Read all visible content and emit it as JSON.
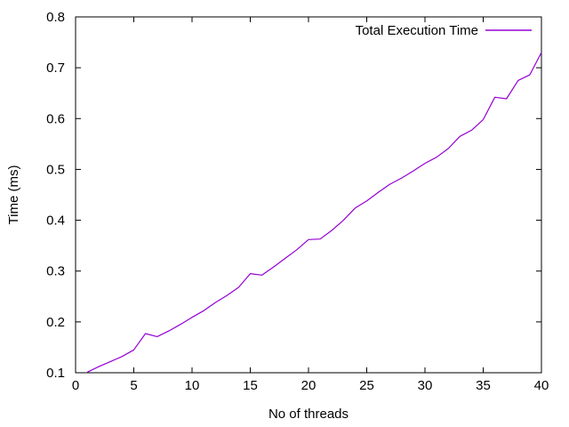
{
  "page": {
    "background": "#ffffff",
    "text_color": "#000000",
    "border_color": "#000000"
  },
  "chart_data": {
    "type": "line",
    "title": "",
    "xlabel": "No of threads",
    "ylabel": "Time (ms)",
    "xlim": [
      0,
      40
    ],
    "ylim": [
      0.1,
      0.8
    ],
    "grid": false,
    "legend_position": "top-right-inside",
    "ticks_style": "inward-mirrored",
    "xticks": {
      "values": [
        0,
        5,
        10,
        15,
        20,
        25,
        30,
        35,
        40
      ],
      "labels": [
        "0",
        "5",
        "10",
        "15",
        "20",
        "25",
        "30",
        "35",
        "40"
      ]
    },
    "yticks": {
      "values": [
        0.1,
        0.2,
        0.3,
        0.4,
        0.5,
        0.6,
        0.7,
        0.8
      ],
      "labels": [
        "0.1",
        "0.2",
        "0.3",
        "0.4",
        "0.5",
        "0.6",
        "0.7",
        "0.8"
      ]
    },
    "series": [
      {
        "name": "Total Execution Time",
        "color": "#9400d3",
        "x": [
          1,
          2,
          3,
          4,
          5,
          6,
          7,
          8,
          9,
          10,
          11,
          12,
          13,
          14,
          15,
          16,
          17,
          18,
          19,
          20,
          21,
          22,
          23,
          24,
          25,
          26,
          27,
          28,
          29,
          30,
          31,
          32,
          33,
          34,
          35,
          36,
          37,
          38,
          39,
          40
        ],
        "values": [
          0.101,
          0.112,
          0.122,
          0.132,
          0.145,
          0.177,
          0.171,
          0.182,
          0.195,
          0.209,
          0.222,
          0.238,
          0.252,
          0.268,
          0.295,
          0.292,
          0.308,
          0.325,
          0.342,
          0.362,
          0.363,
          0.38,
          0.4,
          0.424,
          0.438,
          0.455,
          0.471,
          0.483,
          0.497,
          0.512,
          0.524,
          0.541,
          0.565,
          0.577,
          0.598,
          0.642,
          0.639,
          0.675,
          0.686,
          0.73
        ]
      }
    ]
  }
}
